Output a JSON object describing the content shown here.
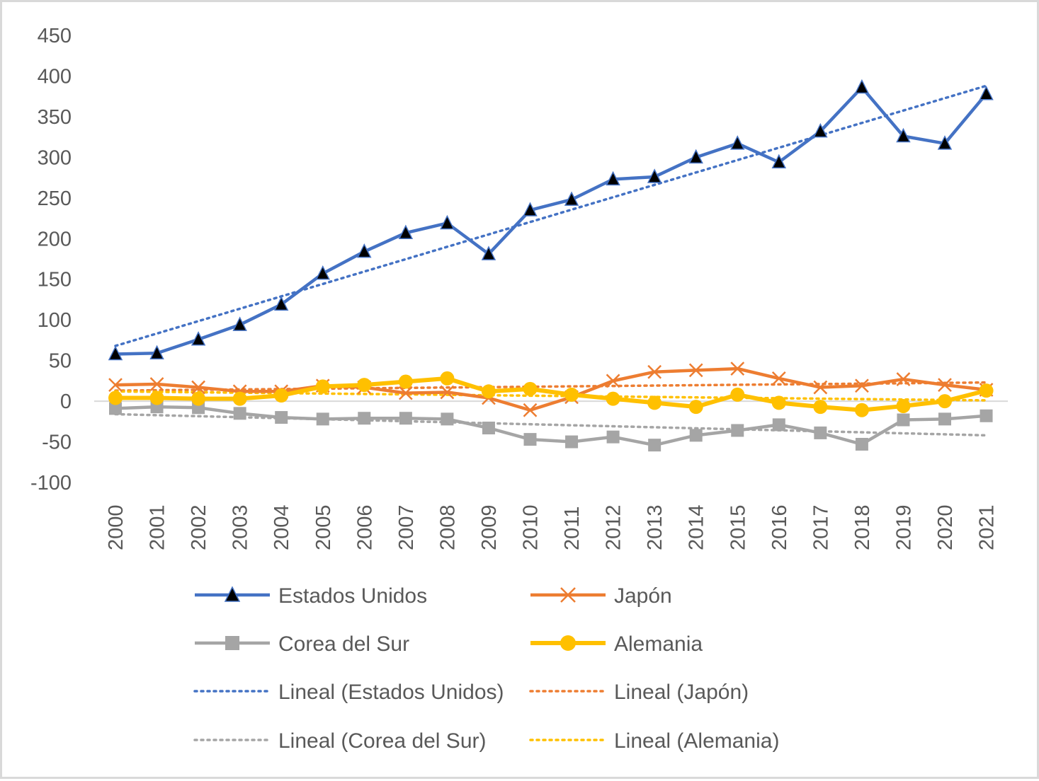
{
  "chart_data": {
    "type": "line",
    "title": "",
    "xlabel": "",
    "ylabel": "",
    "ylim": [
      -100,
      450
    ],
    "ytick_step": 50,
    "grid": false,
    "legend_position": "bottom",
    "categories": [
      "2000",
      "2001",
      "2002",
      "2003",
      "2004",
      "2005",
      "2006",
      "2007",
      "2008",
      "2009",
      "2010",
      "2011",
      "2012",
      "2013",
      "2014",
      "2015",
      "2016",
      "2017",
      "2018",
      "2019",
      "2020",
      "2021"
    ],
    "series": [
      {
        "name": "Estados Unidos",
        "color": "#4472c4",
        "marker": "triangle",
        "marker_fill": "#000000",
        "values": [
          58,
          59,
          76,
          94,
          119,
          157,
          184,
          207,
          219,
          181,
          235,
          248,
          273,
          276,
          300,
          317,
          294,
          332,
          386,
          326,
          317,
          378
        ]
      },
      {
        "name": "Japón",
        "color": "#ed7d31",
        "marker": "x",
        "marker_fill": "#ed7d31",
        "values": [
          20,
          21,
          17,
          12,
          12,
          19,
          17,
          10,
          11,
          4,
          -11,
          5,
          25,
          36,
          38,
          40,
          28,
          17,
          19,
          27,
          20,
          14
        ]
      },
      {
        "name": "Corea del Sur",
        "color": "#a5a5a5",
        "marker": "square",
        "marker_fill": "#a5a5a5",
        "values": [
          -9,
          -7,
          -8,
          -15,
          -20,
          -22,
          -21,
          -21,
          -22,
          -33,
          -47,
          -50,
          -44,
          -54,
          -42,
          -36,
          -29,
          -39,
          -53,
          -23,
          -22,
          -18
        ]
      },
      {
        "name": "Alemania",
        "color": "#ffc000",
        "marker": "circle",
        "marker_fill": "#ffc000",
        "values": [
          4,
          4,
          3,
          3,
          7,
          18,
          20,
          24,
          28,
          12,
          15,
          8,
          3,
          -2,
          -7,
          8,
          -2,
          -7,
          -11,
          -6,
          0,
          13
        ]
      }
    ],
    "trendlines": [
      {
        "name": "Lineal (Estados Unidos)",
        "color": "#4472c4",
        "start": 68,
        "end": 388
      },
      {
        "name": "Lineal (Japón)",
        "color": "#ed7d31",
        "start": 13,
        "end": 23
      },
      {
        "name": "Lineal (Corea del Sur)",
        "color": "#a5a5a5",
        "start": -16,
        "end": -42
      },
      {
        "name": "Lineal (Alemania)",
        "color": "#ffc000",
        "start": 12,
        "end": 1
      }
    ],
    "legend": [
      "Estados Unidos",
      "Japón",
      "Corea del Sur",
      "Alemania",
      "Lineal (Estados Unidos)",
      "Lineal (Japón)",
      "Lineal (Corea del Sur)",
      "Lineal (Alemania)"
    ]
  }
}
